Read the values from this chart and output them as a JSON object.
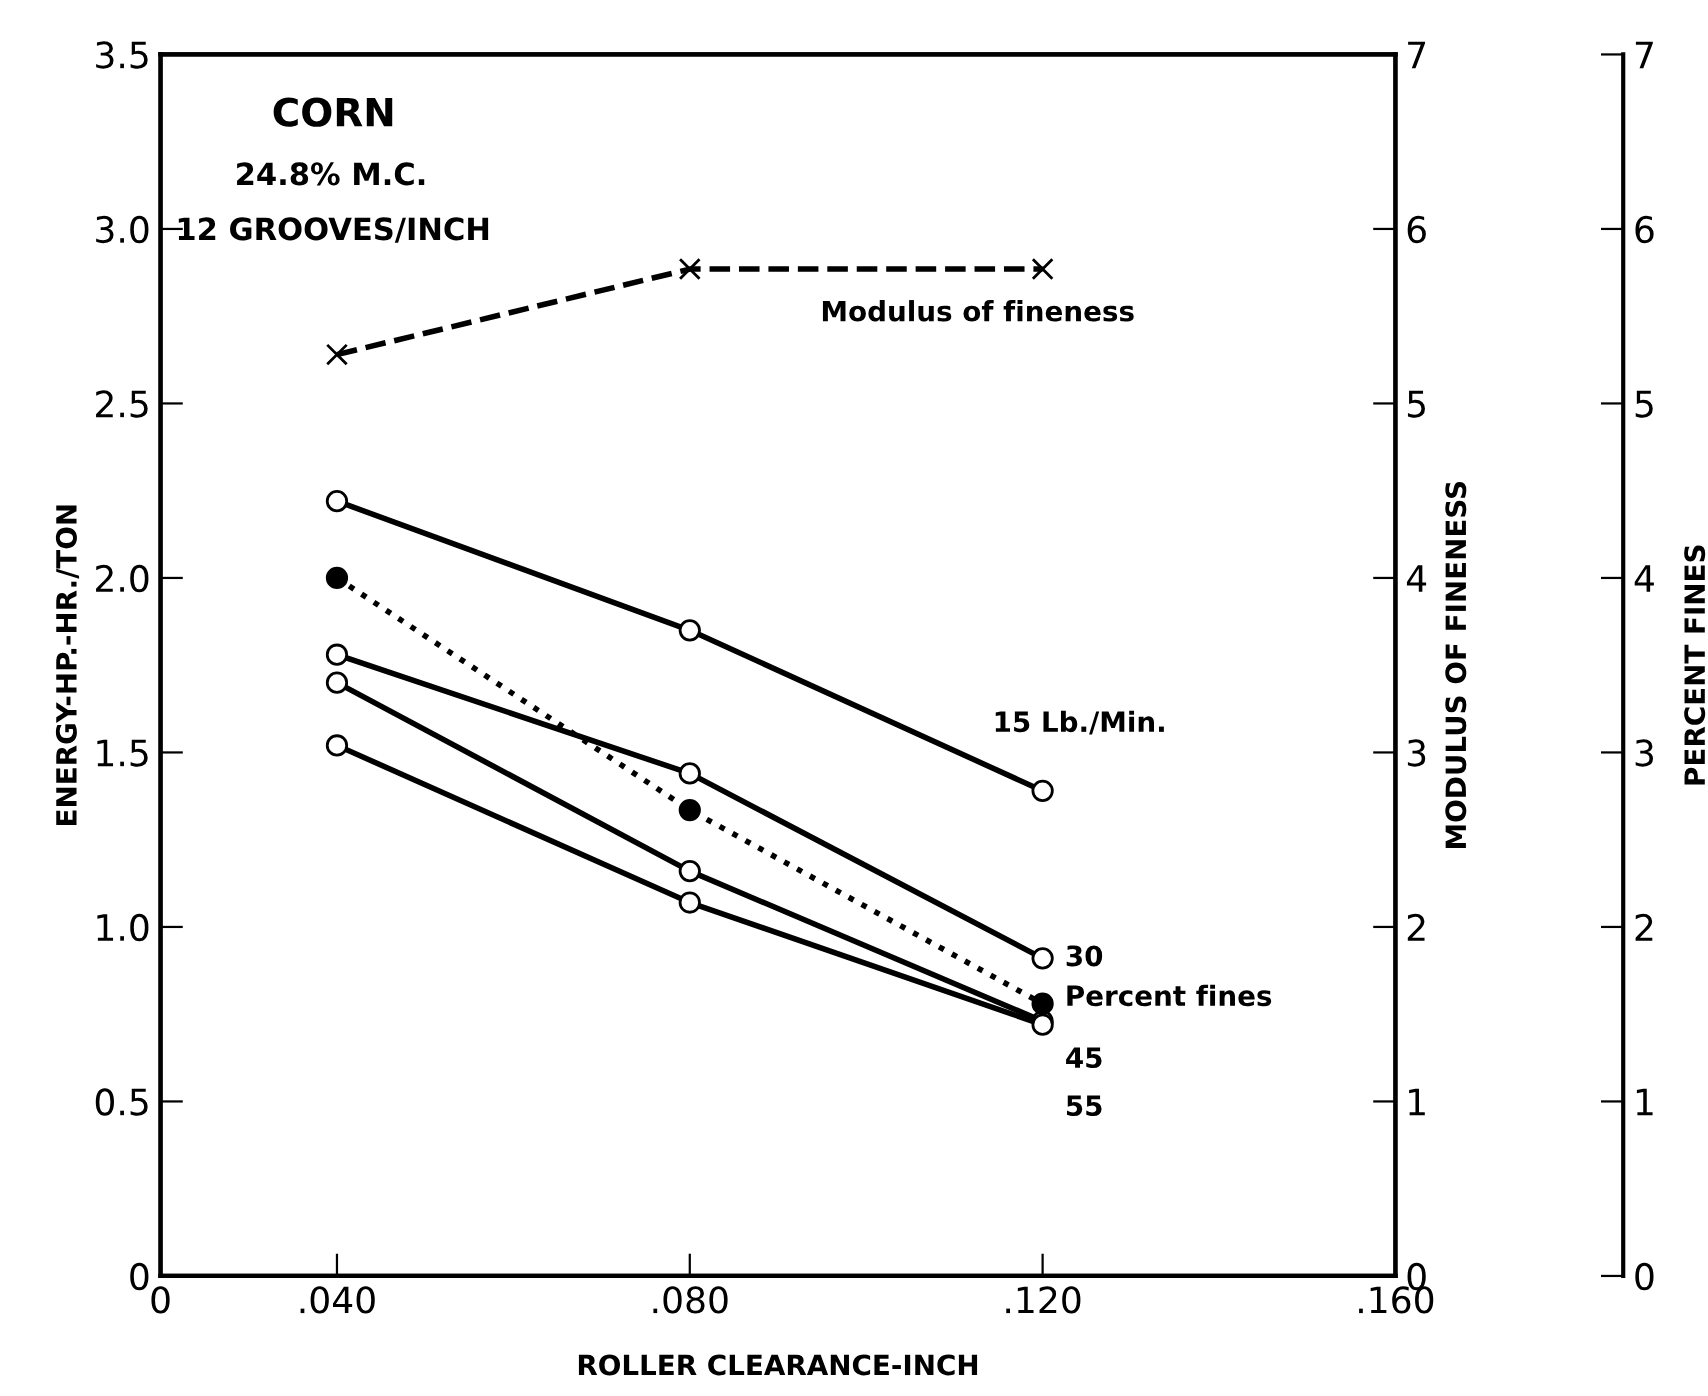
{
  "chart_data": {
    "type": "line",
    "annotations": [
      "CORN",
      "24.8% M.C.",
      "12 GROOVES/INCH"
    ],
    "xlabel": "ROLLER CLEARANCE-INCH",
    "ylabel": "ENERGY-HP.-HR./TON",
    "y2label": "MODULUS OF FINENESS",
    "y3label": "PERCENT FINES",
    "x": [
      0.04,
      0.08,
      0.12
    ],
    "xlim": [
      0.02,
      0.16
    ],
    "xticks": [
      {
        "value": 0.02,
        "label": "0"
      },
      {
        "value": 0.04,
        "label": ".040"
      },
      {
        "value": 0.08,
        "label": ".080"
      },
      {
        "value": 0.12,
        "label": ".120"
      },
      {
        "value": 0.16,
        "label": ".160"
      }
    ],
    "ylim": [
      0,
      3.5
    ],
    "yticks": [
      0,
      0.5,
      {
        "value": 1,
        "label": "1.0"
      },
      1.5,
      {
        "value": 2,
        "label": "2.0"
      },
      2.5,
      {
        "value": 3,
        "label": "3.0"
      },
      3.5
    ],
    "y2lim": [
      0,
      7
    ],
    "y2ticks": [
      0,
      1,
      2,
      3,
      4,
      5,
      6,
      7
    ],
    "y3lim": [
      0,
      7
    ],
    "y3ticks": [
      0,
      1,
      2,
      3,
      4,
      5,
      6,
      7
    ],
    "grid": false,
    "legend": false,
    "series": [
      {
        "name": "15 Lb./Min.",
        "color": "#000000",
        "values": [
          2.22,
          1.85,
          1.39
        ],
        "marker": "circle",
        "line_style": "solid"
      },
      {
        "name": "30",
        "color": "#000000",
        "values": [
          1.78,
          1.44,
          0.91
        ],
        "marker": "circle",
        "line_style": "solid"
      },
      {
        "name": "45",
        "color": "#000000",
        "values": [
          1.7,
          1.16,
          0.73
        ],
        "marker": "circle",
        "line_style": "solid"
      },
      {
        "name": "55",
        "color": "#000000",
        "values": [
          1.52,
          1.07,
          0.72
        ],
        "marker": "circle",
        "line_style": "solid"
      },
      {
        "name": "Percent fines",
        "color": "#000000",
        "values": [
          4.0,
          2.67,
          1.56
        ],
        "marker": "circle",
        "line_style": "dotted",
        "axis": "y3"
      },
      {
        "name": "Modulus of fineness",
        "color": "#000000",
        "values": [
          5.28,
          5.77,
          5.77
        ],
        "marker": "cross",
        "line_style": "dashed",
        "axis": "y2"
      }
    ]
  }
}
